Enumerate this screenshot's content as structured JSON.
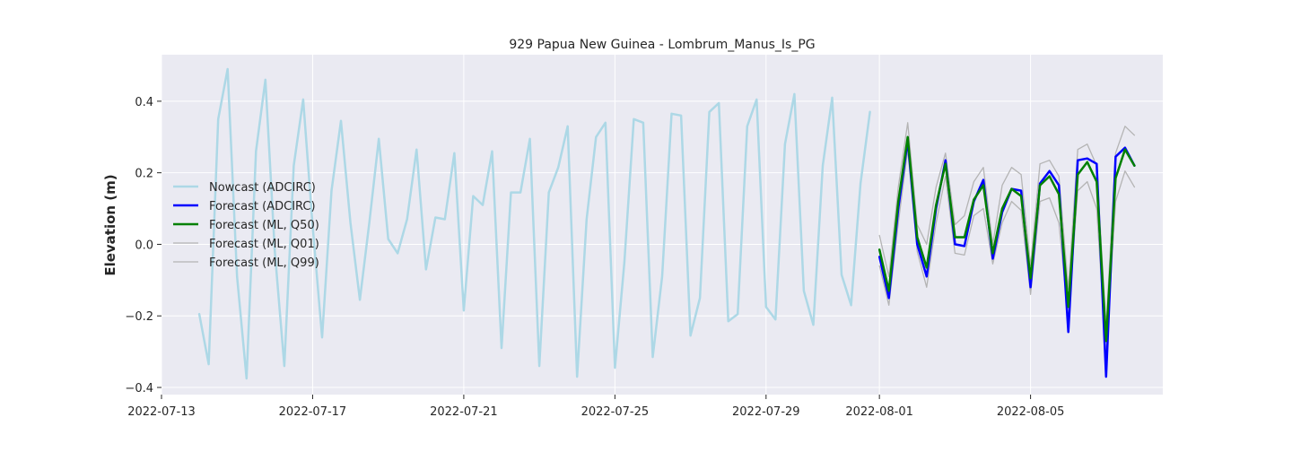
{
  "chart_data": {
    "type": "line",
    "title": "929 Papua New Guinea - Lombrum_Manus_Is_PG",
    "xlabel": "",
    "ylabel": "Elevation (m)",
    "x_axis": "date",
    "xlim": [
      "2022-07-13T00:00",
      "2022-08-08T12:00"
    ],
    "ylim": [
      -0.42,
      0.53
    ],
    "xticks": [
      "2022-07-13",
      "2022-07-17",
      "2022-07-21",
      "2022-07-25",
      "2022-07-29",
      "2022-08-01",
      "2022-08-05"
    ],
    "yticks": [
      -0.4,
      -0.2,
      0.0,
      0.2,
      0.4
    ],
    "ytick_labels": [
      "−0.4",
      "−0.2",
      "0.0",
      "0.2",
      "0.4"
    ],
    "grid": true,
    "legend_position": "center-left",
    "colors": {
      "background": "#eaeaf2",
      "grid": "#ffffff",
      "nowcast": "#add8e6",
      "forecast_adcirc": "#0000ff",
      "forecast_ml_q50": "#008000",
      "forecast_ml_q01": "#b4b4b4",
      "forecast_ml_q99": "#b4b4b4"
    },
    "series": [
      {
        "name": "Nowcast (ADCIRC)",
        "color": "#add8e6",
        "width": 2.5,
        "points": [
          [
            "2022-07-14T00:00",
            -0.195
          ],
          [
            "2022-07-14T06:00",
            -0.335
          ],
          [
            "2022-07-14T12:00",
            0.35
          ],
          [
            "2022-07-14T18:00",
            0.49
          ],
          [
            "2022-07-15T00:00",
            -0.09
          ],
          [
            "2022-07-15T06:00",
            -0.375
          ],
          [
            "2022-07-15T12:00",
            0.26
          ],
          [
            "2022-07-15T18:00",
            0.46
          ],
          [
            "2022-07-16T00:00",
            -0.02
          ],
          [
            "2022-07-16T06:00",
            -0.34
          ],
          [
            "2022-07-16T12:00",
            0.22
          ],
          [
            "2022-07-16T18:00",
            0.405
          ],
          [
            "2022-07-17T00:00",
            0.05
          ],
          [
            "2022-07-17T06:00",
            -0.26
          ],
          [
            "2022-07-17T12:00",
            0.15
          ],
          [
            "2022-07-17T18:00",
            0.345
          ],
          [
            "2022-07-18T00:00",
            0.06
          ],
          [
            "2022-07-18T06:00",
            -0.155
          ],
          [
            "2022-07-18T12:00",
            0.06
          ],
          [
            "2022-07-18T18:00",
            0.295
          ],
          [
            "2022-07-19T00:00",
            0.015
          ],
          [
            "2022-07-19T06:00",
            -0.025
          ],
          [
            "2022-07-19T12:00",
            0.07
          ],
          [
            "2022-07-19T18:00",
            0.265
          ],
          [
            "2022-07-20T00:00",
            -0.07
          ],
          [
            "2022-07-20T06:00",
            0.075
          ],
          [
            "2022-07-20T12:00",
            0.07
          ],
          [
            "2022-07-20T18:00",
            0.255
          ],
          [
            "2022-07-21T00:00",
            -0.185
          ],
          [
            "2022-07-21T06:00",
            0.135
          ],
          [
            "2022-07-21T12:00",
            0.11
          ],
          [
            "2022-07-21T18:00",
            0.26
          ],
          [
            "2022-07-22T00:00",
            -0.29
          ],
          [
            "2022-07-22T06:00",
            0.145
          ],
          [
            "2022-07-22T12:00",
            0.145
          ],
          [
            "2022-07-22T18:00",
            0.295
          ],
          [
            "2022-07-23T00:00",
            -0.34
          ],
          [
            "2022-07-23T06:00",
            0.145
          ],
          [
            "2022-07-23T12:00",
            0.215
          ],
          [
            "2022-07-23T18:00",
            0.33
          ],
          [
            "2022-07-24T00:00",
            -0.37
          ],
          [
            "2022-07-24T06:00",
            0.07
          ],
          [
            "2022-07-24T12:00",
            0.3
          ],
          [
            "2022-07-24T18:00",
            0.34
          ],
          [
            "2022-07-25T00:00",
            -0.345
          ],
          [
            "2022-07-25T06:00",
            -0.05
          ],
          [
            "2022-07-25T12:00",
            0.35
          ],
          [
            "2022-07-25T18:00",
            0.34
          ],
          [
            "2022-07-26T00:00",
            -0.315
          ],
          [
            "2022-07-26T06:00",
            -0.09
          ],
          [
            "2022-07-26T12:00",
            0.365
          ],
          [
            "2022-07-26T18:00",
            0.36
          ],
          [
            "2022-07-27T00:00",
            -0.255
          ],
          [
            "2022-07-27T06:00",
            -0.15
          ],
          [
            "2022-07-27T12:00",
            0.37
          ],
          [
            "2022-07-27T18:00",
            0.395
          ],
          [
            "2022-07-28T00:00",
            -0.215
          ],
          [
            "2022-07-28T06:00",
            -0.195
          ],
          [
            "2022-07-28T12:00",
            0.33
          ],
          [
            "2022-07-28T18:00",
            0.405
          ],
          [
            "2022-07-29T00:00",
            -0.175
          ],
          [
            "2022-07-29T06:00",
            -0.21
          ],
          [
            "2022-07-29T12:00",
            0.28
          ],
          [
            "2022-07-29T18:00",
            0.42
          ],
          [
            "2022-07-30T00:00",
            -0.13
          ],
          [
            "2022-07-30T06:00",
            -0.225
          ],
          [
            "2022-07-30T12:00",
            0.22
          ],
          [
            "2022-07-30T18:00",
            0.41
          ],
          [
            "2022-07-31T00:00",
            -0.085
          ],
          [
            "2022-07-31T06:00",
            -0.17
          ],
          [
            "2022-07-31T12:00",
            0.17
          ],
          [
            "2022-07-31T18:00",
            0.37
          ]
        ]
      },
      {
        "name": "Forecast (ADCIRC)",
        "color": "#0000ff",
        "width": 2.5,
        "points": [
          [
            "2022-08-01T00:00",
            -0.035
          ],
          [
            "2022-08-01T06:00",
            -0.15
          ],
          [
            "2022-08-01T12:00",
            0.1
          ],
          [
            "2022-08-01T18:00",
            0.29
          ],
          [
            "2022-08-02T00:00",
            0.0
          ],
          [
            "2022-08-02T06:00",
            -0.09
          ],
          [
            "2022-08-02T12:00",
            0.1
          ],
          [
            "2022-08-02T18:00",
            0.235
          ],
          [
            "2022-08-03T00:00",
            0.0
          ],
          [
            "2022-08-03T06:00",
            -0.005
          ],
          [
            "2022-08-03T12:00",
            0.12
          ],
          [
            "2022-08-03T18:00",
            0.18
          ],
          [
            "2022-08-04T00:00",
            -0.04
          ],
          [
            "2022-08-04T06:00",
            0.09
          ],
          [
            "2022-08-04T12:00",
            0.155
          ],
          [
            "2022-08-04T18:00",
            0.15
          ],
          [
            "2022-08-05T00:00",
            -0.12
          ],
          [
            "2022-08-05T06:00",
            0.17
          ],
          [
            "2022-08-05T12:00",
            0.205
          ],
          [
            "2022-08-05T18:00",
            0.165
          ],
          [
            "2022-08-06T00:00",
            -0.245
          ],
          [
            "2022-08-06T06:00",
            0.235
          ],
          [
            "2022-08-06T12:00",
            0.24
          ],
          [
            "2022-08-06T18:00",
            0.225
          ],
          [
            "2022-08-07T00:00",
            -0.37
          ],
          [
            "2022-08-07T06:00",
            0.245
          ],
          [
            "2022-08-07T12:00",
            0.27
          ],
          [
            "2022-08-07T18:00",
            0.22
          ]
        ]
      },
      {
        "name": "Forecast (ML, Q50)",
        "color": "#008000",
        "width": 2.5,
        "points": [
          [
            "2022-08-01T00:00",
            -0.015
          ],
          [
            "2022-08-01T06:00",
            -0.13
          ],
          [
            "2022-08-01T12:00",
            0.12
          ],
          [
            "2022-08-01T18:00",
            0.3
          ],
          [
            "2022-08-02T00:00",
            0.02
          ],
          [
            "2022-08-02T06:00",
            -0.065
          ],
          [
            "2022-08-02T12:00",
            0.11
          ],
          [
            "2022-08-02T18:00",
            0.225
          ],
          [
            "2022-08-03T00:00",
            0.02
          ],
          [
            "2022-08-03T06:00",
            0.02
          ],
          [
            "2022-08-03T12:00",
            0.125
          ],
          [
            "2022-08-03T18:00",
            0.165
          ],
          [
            "2022-08-04T00:00",
            -0.025
          ],
          [
            "2022-08-04T06:00",
            0.1
          ],
          [
            "2022-08-04T12:00",
            0.155
          ],
          [
            "2022-08-04T18:00",
            0.135
          ],
          [
            "2022-08-05T00:00",
            -0.095
          ],
          [
            "2022-08-05T06:00",
            0.165
          ],
          [
            "2022-08-05T12:00",
            0.19
          ],
          [
            "2022-08-05T18:00",
            0.14
          ],
          [
            "2022-08-06T00:00",
            -0.175
          ],
          [
            "2022-08-06T06:00",
            0.195
          ],
          [
            "2022-08-06T12:00",
            0.23
          ],
          [
            "2022-08-06T18:00",
            0.175
          ],
          [
            "2022-08-07T00:00",
            -0.27
          ],
          [
            "2022-08-07T06:00",
            0.185
          ],
          [
            "2022-08-07T12:00",
            0.265
          ],
          [
            "2022-08-07T18:00",
            0.22
          ]
        ]
      },
      {
        "name": "Forecast (ML, Q01)",
        "color": "#b4b4b4",
        "width": 1.3,
        "points": [
          [
            "2022-08-01T00:00",
            -0.06
          ],
          [
            "2022-08-01T06:00",
            -0.17
          ],
          [
            "2022-08-01T12:00",
            0.06
          ],
          [
            "2022-08-01T18:00",
            0.265
          ],
          [
            "2022-08-02T00:00",
            -0.02
          ],
          [
            "2022-08-02T06:00",
            -0.12
          ],
          [
            "2022-08-02T12:00",
            0.06
          ],
          [
            "2022-08-02T18:00",
            0.19
          ],
          [
            "2022-08-03T00:00",
            -0.025
          ],
          [
            "2022-08-03T06:00",
            -0.03
          ],
          [
            "2022-08-03T12:00",
            0.08
          ],
          [
            "2022-08-03T18:00",
            0.1
          ],
          [
            "2022-08-04T00:00",
            -0.055
          ],
          [
            "2022-08-04T06:00",
            0.06
          ],
          [
            "2022-08-04T12:00",
            0.12
          ],
          [
            "2022-08-04T18:00",
            0.095
          ],
          [
            "2022-08-05T00:00",
            -0.14
          ],
          [
            "2022-08-05T06:00",
            0.12
          ],
          [
            "2022-08-05T12:00",
            0.13
          ],
          [
            "2022-08-05T18:00",
            0.06
          ],
          [
            "2022-08-06T00:00",
            -0.21
          ],
          [
            "2022-08-06T06:00",
            0.15
          ],
          [
            "2022-08-06T12:00",
            0.175
          ],
          [
            "2022-08-06T18:00",
            0.1
          ],
          [
            "2022-08-07T00:00",
            -0.31
          ],
          [
            "2022-08-07T06:00",
            0.12
          ],
          [
            "2022-08-07T12:00",
            0.205
          ],
          [
            "2022-08-07T18:00",
            0.16
          ]
        ]
      },
      {
        "name": "Forecast (ML, Q99)",
        "color": "#b4b4b4",
        "width": 1.3,
        "points": [
          [
            "2022-08-01T00:00",
            0.025
          ],
          [
            "2022-08-01T06:00",
            -0.09
          ],
          [
            "2022-08-01T12:00",
            0.16
          ],
          [
            "2022-08-01T18:00",
            0.34
          ],
          [
            "2022-08-02T00:00",
            0.055
          ],
          [
            "2022-08-02T06:00",
            0.0
          ],
          [
            "2022-08-02T12:00",
            0.16
          ],
          [
            "2022-08-02T18:00",
            0.255
          ],
          [
            "2022-08-03T00:00",
            0.055
          ],
          [
            "2022-08-03T06:00",
            0.08
          ],
          [
            "2022-08-03T12:00",
            0.175
          ],
          [
            "2022-08-03T18:00",
            0.215
          ],
          [
            "2022-08-04T00:00",
            0.0
          ],
          [
            "2022-08-04T06:00",
            0.165
          ],
          [
            "2022-08-04T12:00",
            0.215
          ],
          [
            "2022-08-04T18:00",
            0.195
          ],
          [
            "2022-08-05T00:00",
            -0.06
          ],
          [
            "2022-08-05T06:00",
            0.225
          ],
          [
            "2022-08-05T12:00",
            0.235
          ],
          [
            "2022-08-05T18:00",
            0.19
          ],
          [
            "2022-08-06T00:00",
            -0.125
          ],
          [
            "2022-08-06T06:00",
            0.265
          ],
          [
            "2022-08-06T12:00",
            0.28
          ],
          [
            "2022-08-06T18:00",
            0.22
          ],
          [
            "2022-08-07T00:00",
            -0.23
          ],
          [
            "2022-08-07T06:00",
            0.255
          ],
          [
            "2022-08-07T12:00",
            0.33
          ],
          [
            "2022-08-07T18:00",
            0.305
          ]
        ]
      }
    ]
  }
}
